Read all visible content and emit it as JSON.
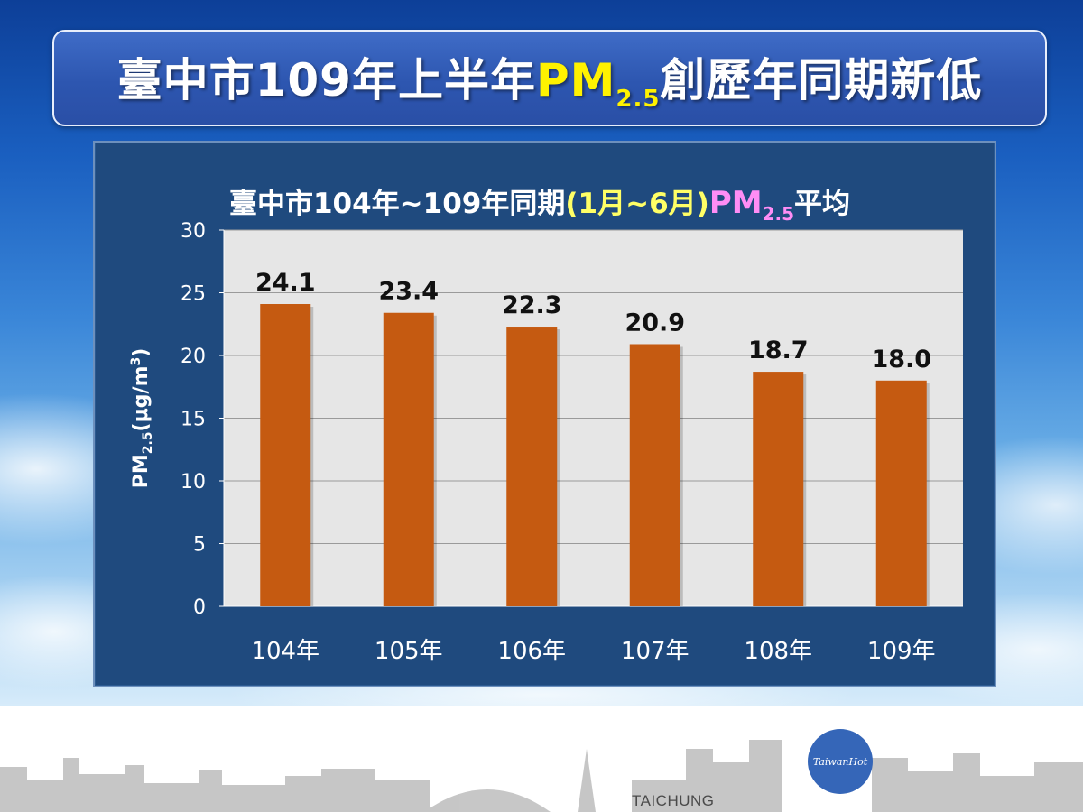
{
  "slide_title": {
    "prefix": "臺中市109年上半年",
    "pm": "PM",
    "pm_sub": "2.5",
    "suffix": "創歷年同期新低"
  },
  "chart_data": {
    "type": "bar",
    "title_parts": {
      "prefix": "臺中市104年~109年同期",
      "months": "(1月~6月)",
      "pm": "PM",
      "pm_sub": "2.5",
      "suffix": "平均"
    },
    "categories": [
      "104年",
      "105年",
      "106年",
      "107年",
      "108年",
      "109年"
    ],
    "values": [
      24.1,
      23.4,
      22.3,
      20.9,
      18.7,
      18.0
    ],
    "value_labels": [
      "24.1",
      "23.4",
      "22.3",
      "20.9",
      "18.7",
      "18.0"
    ],
    "ylabel": "PM2.5(μg/m3)",
    "ylim": [
      0,
      30
    ],
    "yticks": [
      0,
      5,
      10,
      15,
      20,
      25,
      30
    ],
    "grid": true,
    "bar_color": "#c55a11",
    "plot_background": "#e6e6e6",
    "panel_background": "#1f4a7e"
  },
  "footer": {
    "city_label": "TAICHUNG",
    "logo_text": "TaiwanHot"
  },
  "colors": {
    "title_highlight": "#fff200",
    "months_highlight": "#ffff66",
    "pm_highlight": "#ff8df5"
  }
}
